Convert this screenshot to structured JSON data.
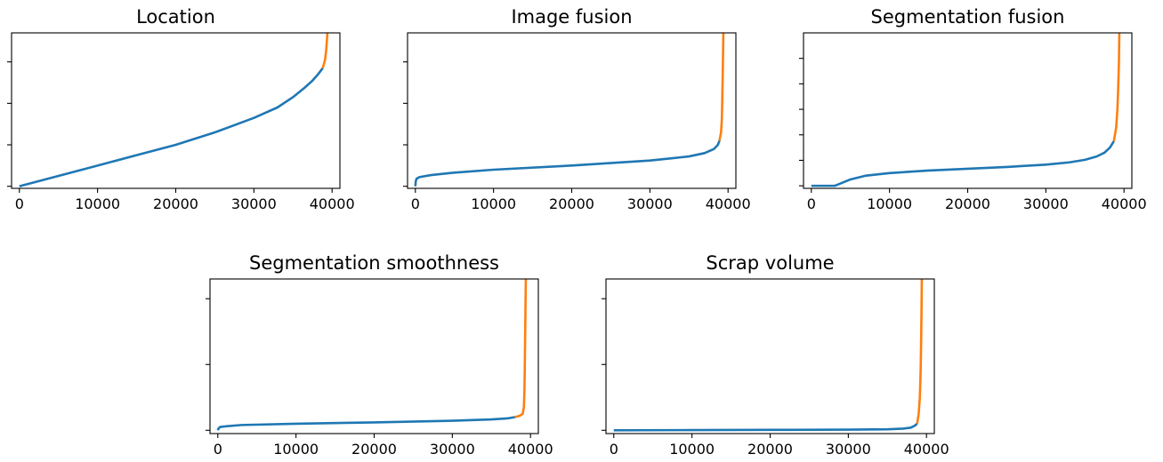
{
  "chart_data": [
    {
      "type": "line",
      "title": "Location",
      "xlabel": "",
      "ylabel": "",
      "xlim": [
        -1000,
        41000
      ],
      "ylim": [
        -0.05,
        3.7
      ],
      "x_ticks": [
        0,
        10000,
        20000,
        30000,
        40000
      ],
      "x_tick_labels": [
        "0",
        "10000",
        "20000",
        "30000",
        "40000"
      ],
      "y_ticks": [
        0,
        1,
        2,
        3
      ],
      "y_tick_labels": [
        "",
        "",
        "",
        ""
      ],
      "grid": false,
      "series": [
        {
          "color": "#1f77b4",
          "x": [
            0,
            5000,
            10000,
            15000,
            20000,
            25000,
            30000,
            33000,
            35000,
            36500,
            37500,
            38200,
            38800
          ],
          "y": [
            0,
            0.25,
            0.5,
            0.75,
            1.0,
            1.3,
            1.65,
            1.9,
            2.15,
            2.38,
            2.55,
            2.7,
            2.85
          ]
        },
        {
          "color": "#ff7f0e",
          "x": [
            38800,
            39100,
            39250,
            39350,
            39400
          ],
          "y": [
            2.85,
            3.05,
            3.3,
            3.55,
            3.7
          ]
        }
      ]
    },
    {
      "type": "line",
      "title": "Image fusion",
      "xlabel": "",
      "ylabel": "",
      "xlim": [
        -1000,
        41000
      ],
      "ylim": [
        -0.05,
        3.7
      ],
      "x_ticks": [
        0,
        10000,
        20000,
        30000,
        40000
      ],
      "x_tick_labels": [
        "0",
        "10000",
        "20000",
        "30000",
        "40000"
      ],
      "y_ticks": [
        0,
        1,
        2,
        3
      ],
      "y_tick_labels": [
        "",
        "",
        "",
        ""
      ],
      "grid": false,
      "series": [
        {
          "color": "#1f77b4",
          "x": [
            0,
            50,
            150,
            500,
            2000,
            5000,
            10000,
            20000,
            30000,
            35000,
            37000,
            38200,
            38700,
            38900
          ],
          "y": [
            0,
            0.12,
            0.18,
            0.22,
            0.27,
            0.33,
            0.4,
            0.5,
            0.62,
            0.72,
            0.8,
            0.9,
            1.0,
            1.1
          ]
        },
        {
          "color": "#ff7f0e",
          "x": [
            38900,
            39100,
            39200,
            39250,
            39300,
            39350,
            39400
          ],
          "y": [
            1.1,
            1.3,
            1.6,
            2.0,
            2.5,
            3.1,
            3.7
          ]
        }
      ]
    },
    {
      "type": "line",
      "title": "Segmentation fusion",
      "xlabel": "",
      "ylabel": "",
      "xlim": [
        -1000,
        41000
      ],
      "ylim": [
        -0.1,
        6.0
      ],
      "x_ticks": [
        0,
        10000,
        20000,
        30000,
        40000
      ],
      "x_tick_labels": [
        "0",
        "10000",
        "20000",
        "30000",
        "40000"
      ],
      "y_ticks": [
        0,
        1,
        2,
        3,
        4,
        5
      ],
      "y_tick_labels": [
        "",
        "",
        "",
        "",
        "",
        ""
      ],
      "grid": false,
      "series": [
        {
          "color": "#1f77b4",
          "x": [
            0,
            3000,
            3400,
            5000,
            7000,
            10000,
            15000,
            20000,
            25000,
            30000,
            33000,
            35000,
            36500,
            37500,
            38200,
            38700
          ],
          "y": [
            0,
            0,
            0.05,
            0.25,
            0.4,
            0.5,
            0.6,
            0.67,
            0.74,
            0.83,
            0.92,
            1.02,
            1.15,
            1.3,
            1.5,
            1.75
          ]
        },
        {
          "color": "#ff7f0e",
          "x": [
            38700,
            39000,
            39150,
            39250,
            39350,
            39400
          ],
          "y": [
            1.75,
            2.3,
            3.0,
            3.8,
            4.9,
            6.0
          ]
        }
      ]
    },
    {
      "type": "line",
      "title": "Segmentation smoothness",
      "xlabel": "",
      "ylabel": "",
      "xlim": [
        -1000,
        41000
      ],
      "ylim": [
        -0.05,
        2.3
      ],
      "x_ticks": [
        0,
        10000,
        20000,
        30000,
        40000
      ],
      "x_tick_labels": [
        "0",
        "10000",
        "20000",
        "30000",
        "40000"
      ],
      "y_ticks": [
        0,
        1,
        2
      ],
      "y_tick_labels": [
        "",
        "",
        ""
      ],
      "grid": false,
      "series": [
        {
          "color": "#1f77b4",
          "x": [
            0,
            100,
            300,
            1000,
            3000,
            10000,
            20000,
            30000,
            35000,
            37000,
            38000
          ],
          "y": [
            0,
            0.03,
            0.05,
            0.06,
            0.08,
            0.1,
            0.12,
            0.145,
            0.165,
            0.18,
            0.2
          ]
        },
        {
          "color": "#ff7f0e",
          "x": [
            38000,
            38600,
            39000,
            39150,
            39220,
            39260,
            39300,
            39350,
            39400
          ],
          "y": [
            0.2,
            0.22,
            0.25,
            0.35,
            0.6,
            0.9,
            1.3,
            1.8,
            2.3
          ]
        }
      ]
    },
    {
      "type": "line",
      "title": "Scrap volume",
      "xlabel": "",
      "ylabel": "",
      "xlim": [
        -1000,
        41000
      ],
      "ylim": [
        -0.05,
        2.3
      ],
      "x_ticks": [
        0,
        10000,
        20000,
        30000,
        40000
      ],
      "x_tick_labels": [
        "0",
        "10000",
        "20000",
        "30000",
        "40000"
      ],
      "y_ticks": [
        0,
        1,
        2
      ],
      "y_tick_labels": [
        "",
        "",
        ""
      ],
      "grid": false,
      "series": [
        {
          "color": "#1f77b4",
          "x": [
            0,
            10000,
            20000,
            30000,
            35000,
            37000,
            38000,
            38500,
            38800
          ],
          "y": [
            0,
            0.003,
            0.006,
            0.01,
            0.015,
            0.025,
            0.04,
            0.07,
            0.1
          ]
        },
        {
          "color": "#ff7f0e",
          "x": [
            38800,
            39000,
            39150,
            39250,
            39320,
            39370,
            39400
          ],
          "y": [
            0.1,
            0.25,
            0.5,
            0.9,
            1.4,
            1.9,
            2.3
          ]
        }
      ]
    }
  ]
}
